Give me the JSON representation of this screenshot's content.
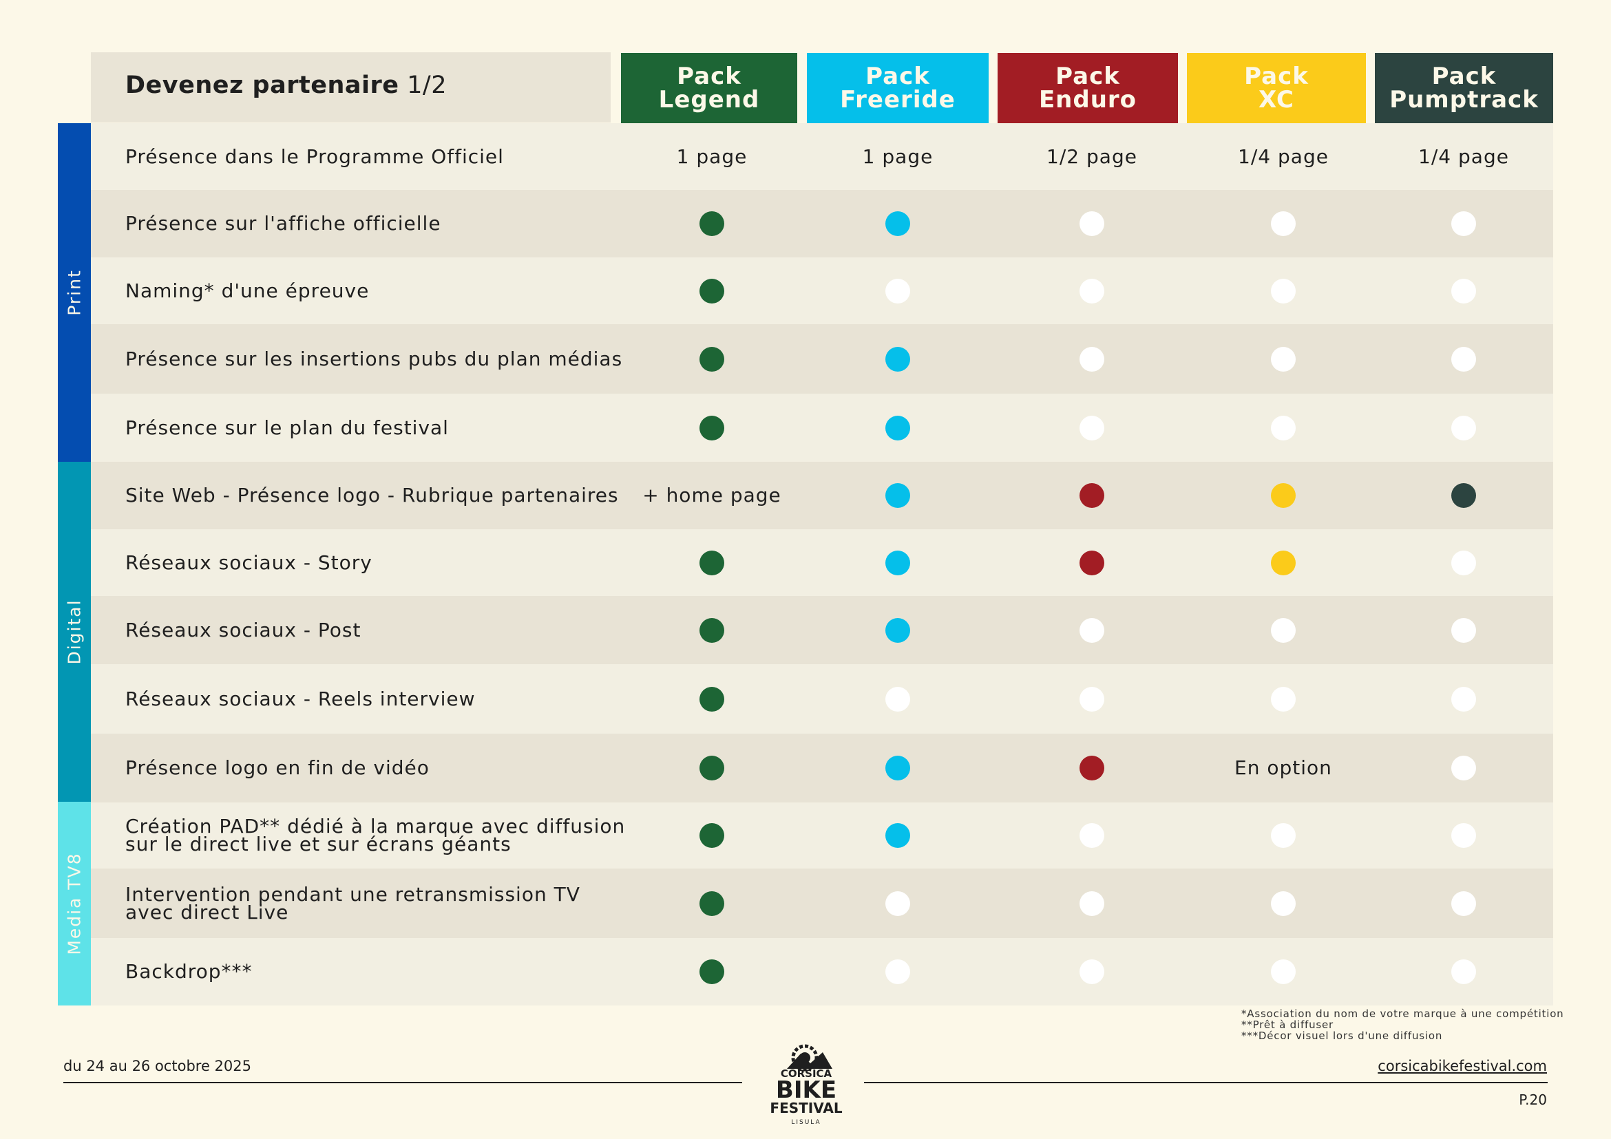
{
  "title": {
    "bold": "Devenez partenaire",
    "page": "1/2"
  },
  "packs": [
    {
      "line1": "Pack",
      "line2": "Legend",
      "color": "#1d6535"
    },
    {
      "line1": "Pack",
      "line2": "Freeride",
      "color": "#05bfea"
    },
    {
      "line1": "Pack",
      "line2": "Enduro",
      "color": "#a21d24"
    },
    {
      "line1": "Pack",
      "line2": "XC",
      "color": "#fbcb1a"
    },
    {
      "line1": "Pack",
      "line2": "Pumptrack",
      "color": "#2c4440"
    }
  ],
  "categories": [
    {
      "label": "Print",
      "color": "#044db0"
    },
    {
      "label": "Digital",
      "color": "#0296b3"
    },
    {
      "label": "Media TV8",
      "color": "#5ee2e8"
    }
  ],
  "rows": [
    {
      "label": [
        "Présence dans le Programme Officiel"
      ],
      "cells": [
        {
          "text": "1 page"
        },
        {
          "text": "1 page"
        },
        {
          "text": "1/2 page"
        },
        {
          "text": "1/4 page"
        },
        {
          "text": "1/4 page"
        }
      ]
    },
    {
      "label": [
        "Présence sur l'affiche officielle"
      ],
      "cells": [
        {
          "dot": "#1d6535"
        },
        {
          "dot": "#05bfea"
        },
        {
          "dot": "#ffffff"
        },
        {
          "dot": "#ffffff"
        },
        {
          "dot": "#ffffff"
        }
      ]
    },
    {
      "label": [
        "Naming* d'une épreuve"
      ],
      "cells": [
        {
          "dot": "#1d6535"
        },
        {
          "dot": "#ffffff"
        },
        {
          "dot": "#ffffff"
        },
        {
          "dot": "#ffffff"
        },
        {
          "dot": "#ffffff"
        }
      ]
    },
    {
      "label": [
        "Présence sur les insertions pubs du plan médias"
      ],
      "cells": [
        {
          "dot": "#1d6535"
        },
        {
          "dot": "#05bfea"
        },
        {
          "dot": "#ffffff"
        },
        {
          "dot": "#ffffff"
        },
        {
          "dot": "#ffffff"
        }
      ]
    },
    {
      "label": [
        "Présence sur le plan du festival"
      ],
      "cells": [
        {
          "dot": "#1d6535"
        },
        {
          "dot": "#05bfea"
        },
        {
          "dot": "#ffffff"
        },
        {
          "dot": "#ffffff"
        },
        {
          "dot": "#ffffff"
        }
      ]
    },
    {
      "label": [
        "Site Web - Présence logo - Rubrique partenaires"
      ],
      "cells": [
        {
          "text": "+ home page"
        },
        {
          "dot": "#05bfea"
        },
        {
          "dot": "#a21d24"
        },
        {
          "dot": "#fbcb1a"
        },
        {
          "dot": "#2c4440"
        }
      ]
    },
    {
      "label": [
        "Réseaux sociaux - Story"
      ],
      "cells": [
        {
          "dot": "#1d6535"
        },
        {
          "dot": "#05bfea"
        },
        {
          "dot": "#a21d24"
        },
        {
          "dot": "#fbcb1a"
        },
        {
          "dot": "#ffffff"
        }
      ]
    },
    {
      "label": [
        "Réseaux sociaux - Post"
      ],
      "cells": [
        {
          "dot": "#1d6535"
        },
        {
          "dot": "#05bfea"
        },
        {
          "dot": "#ffffff"
        },
        {
          "dot": "#ffffff"
        },
        {
          "dot": "#ffffff"
        }
      ]
    },
    {
      "label": [
        "Réseaux sociaux - Reels interview"
      ],
      "cells": [
        {
          "dot": "#1d6535"
        },
        {
          "dot": "#ffffff"
        },
        {
          "dot": "#ffffff"
        },
        {
          "dot": "#ffffff"
        },
        {
          "dot": "#ffffff"
        }
      ]
    },
    {
      "label": [
        "Présence logo en fin de vidéo"
      ],
      "cells": [
        {
          "dot": "#1d6535"
        },
        {
          "dot": "#05bfea"
        },
        {
          "dot": "#a21d24"
        },
        {
          "text": "En option"
        },
        {
          "dot": "#ffffff"
        }
      ]
    },
    {
      "label": [
        "Création PAD** dédié à la marque avec diffusion",
        "sur le direct live et sur écrans géants"
      ],
      "cells": [
        {
          "dot": "#1d6535"
        },
        {
          "dot": "#05bfea"
        },
        {
          "dot": "#ffffff"
        },
        {
          "dot": "#ffffff"
        },
        {
          "dot": "#ffffff"
        }
      ]
    },
    {
      "label": [
        "Intervention pendant une retransmission TV",
        "avec direct Live"
      ],
      "cells": [
        {
          "dot": "#1d6535"
        },
        {
          "dot": "#ffffff"
        },
        {
          "dot": "#ffffff"
        },
        {
          "dot": "#ffffff"
        },
        {
          "dot": "#ffffff"
        }
      ]
    },
    {
      "label": [
        "Backdrop***"
      ],
      "cells": [
        {
          "dot": "#1d6535"
        },
        {
          "dot": "#ffffff"
        },
        {
          "dot": "#ffffff"
        },
        {
          "dot": "#ffffff"
        },
        {
          "dot": "#ffffff"
        }
      ]
    }
  ],
  "footnotes": [
    "*Association du nom de votre marque à une compétition",
    "**Prêt à diffuser",
    "***Décor visuel lors d'une diffusion"
  ],
  "footer": {
    "date": "du 24 au 26 octobre 2025",
    "website": "corsicabikefestival.com",
    "page": "P.20",
    "logo": {
      "line1": "CORSICA",
      "line2": "BIKE",
      "line3": "FESTIVAL",
      "line4": "LISULA"
    }
  },
  "colors": {
    "row_light": "#f2efe2",
    "row_dark": "#e8e3d5"
  }
}
